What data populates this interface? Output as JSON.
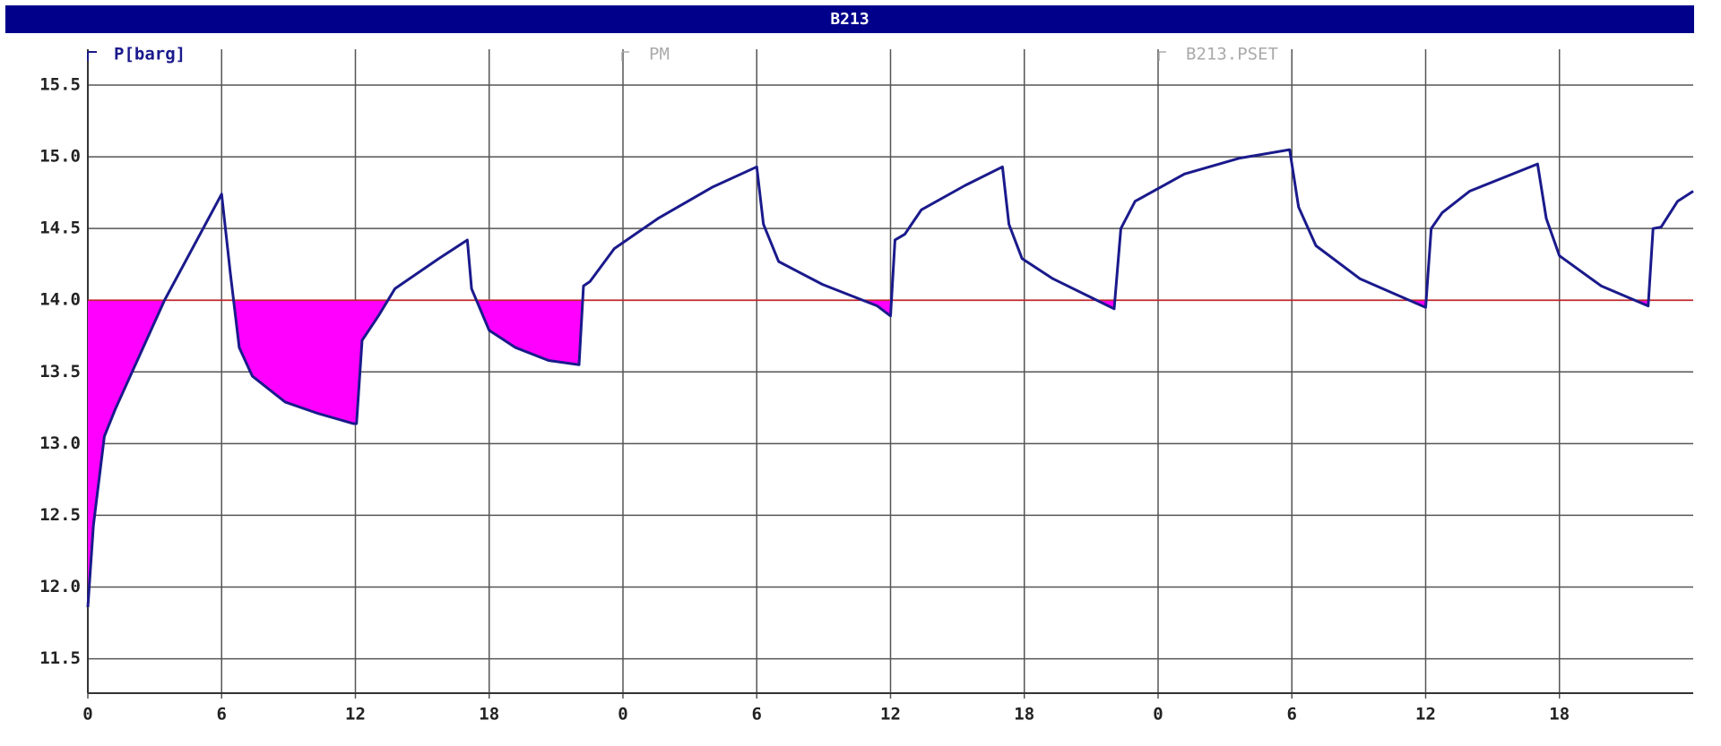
{
  "chart_data": {
    "type": "line",
    "title": "B213",
    "y_label": "P[barg]",
    "xlim": [
      0,
      72
    ],
    "xticks": [
      0,
      6,
      12,
      18,
      {
        "value": 24,
        "label": "0"
      },
      {
        "value": 30,
        "label": "6"
      },
      {
        "value": 36,
        "label": "12"
      },
      {
        "value": 42,
        "label": "18"
      },
      {
        "value": 48,
        "label": "0"
      },
      {
        "value": 54,
        "label": "6"
      },
      {
        "value": 60,
        "label": "12"
      },
      {
        "value": 66,
        "label": "18"
      }
    ],
    "ylim": [
      11.26,
      15.75
    ],
    "yticks": [
      {
        "value": 11.5,
        "label": "11.5"
      },
      {
        "value": 12,
        "label": "12.0"
      },
      {
        "value": 12.5,
        "label": "12.5"
      },
      {
        "value": 13,
        "label": "13.0"
      },
      {
        "value": 13.5,
        "label": "13.5"
      },
      {
        "value": 14,
        "label": "14.0"
      },
      {
        "value": 14.5,
        "label": "14.5"
      },
      {
        "value": 15,
        "label": "15.0"
      },
      {
        "value": 15.5,
        "label": "15.5"
      }
    ],
    "grid": true,
    "fill_below_setpoint_color": "#ff00ff",
    "series": [
      {
        "name": "PM",
        "color": "#1a1a8c",
        "x": [
          0,
          0.25,
          0.74,
          1.23,
          3.44,
          6.0,
          6.39,
          6.79,
          7.38,
          8.85,
          10.33,
          11.9,
          12.05,
          12.3,
          13.03,
          13.77,
          15.74,
          17.02,
          17.21,
          18.0,
          19.18,
          20.66,
          22.03,
          22.23,
          22.52,
          23.61,
          25.57,
          28.03,
          30.0,
          30.3,
          30.98,
          32.95,
          35.41,
          36.0,
          36.2,
          36.64,
          37.38,
          39.34,
          41.02,
          41.31,
          41.9,
          43.28,
          45.25,
          46.03,
          46.33,
          46.97,
          49.18,
          51.64,
          53.9,
          54.3,
          55.08,
          57.05,
          60.0,
          60.25,
          60.74,
          61.97,
          65.02,
          65.41,
          66.0,
          67.87,
          69.98,
          70.2,
          70.56,
          71.3,
          72
        ],
        "values": [
          11.86,
          12.43,
          13.05,
          13.24,
          14.0,
          14.74,
          14.19,
          13.67,
          13.47,
          13.29,
          13.21,
          13.14,
          13.14,
          13.72,
          13.89,
          14.08,
          14.29,
          14.42,
          14.08,
          13.79,
          13.67,
          13.58,
          13.55,
          14.1,
          14.13,
          14.36,
          14.57,
          14.79,
          14.93,
          14.53,
          14.27,
          14.11,
          13.96,
          13.89,
          14.42,
          14.46,
          14.63,
          14.8,
          14.93,
          14.53,
          14.29,
          14.15,
          14.0,
          13.94,
          14.5,
          14.69,
          14.88,
          14.99,
          15.05,
          14.65,
          14.38,
          14.15,
          13.95,
          14.5,
          14.61,
          14.76,
          14.95,
          14.57,
          14.31,
          14.1,
          13.96,
          14.5,
          14.51,
          14.69,
          14.76
        ]
      },
      {
        "name": "B213.PSET",
        "color": "#c0282d",
        "x": [
          0,
          72
        ],
        "values": [
          14,
          14
        ]
      }
    ]
  }
}
